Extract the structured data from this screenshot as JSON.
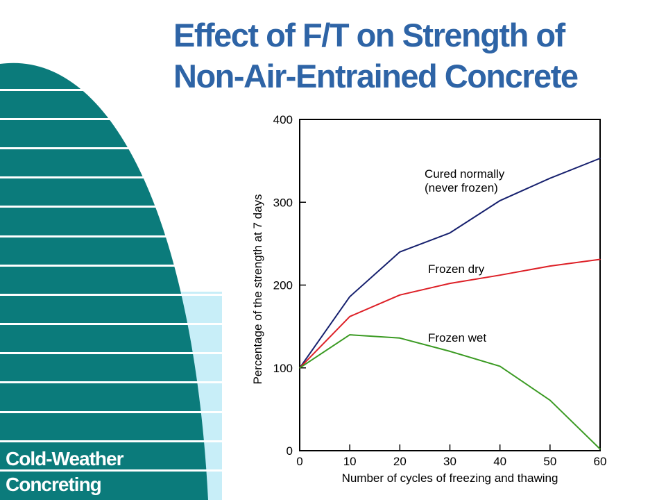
{
  "slide": {
    "title_line1": "Effect of F/T on Strength of",
    "title_line2": "Non-Air-Entrained Concrete",
    "brand_line1": "Cold-Weather",
    "brand_line2": "Concreting"
  },
  "colors": {
    "title": "#2e64a6",
    "decoration_teal": "#0b7b7b",
    "decoration_light": "#c8eef8",
    "brand_text": "#ffffff"
  },
  "chart_data": {
    "type": "line",
    "title": "",
    "xlabel": "Number of cycles of freezing and thawing",
    "ylabel": "Percentage of the strength at 7 days",
    "xlim": [
      0,
      60
    ],
    "ylim": [
      0,
      400
    ],
    "xticks": [
      0,
      10,
      20,
      30,
      40,
      50,
      60
    ],
    "yticks": [
      0,
      100,
      200,
      300,
      400
    ],
    "grid": false,
    "x": [
      0,
      10,
      20,
      30,
      40,
      50,
      60
    ],
    "series": [
      {
        "name": "Cured normally (never frozen)",
        "label_lines": [
          "Cured normally",
          "(never frozen)"
        ],
        "color": "#16206e",
        "values": [
          100,
          186,
          240,
          263,
          302,
          329,
          353
        ]
      },
      {
        "name": "Frozen dry",
        "label_lines": [
          "Frozen dry"
        ],
        "color": "#dd1f26",
        "values": [
          100,
          162,
          188,
          202,
          212,
          223,
          231
        ]
      },
      {
        "name": "Frozen wet",
        "label_lines": [
          "Frozen wet"
        ],
        "color": "#3a9a22",
        "values": [
          100,
          140,
          136,
          120,
          102,
          61,
          2
        ]
      }
    ]
  }
}
